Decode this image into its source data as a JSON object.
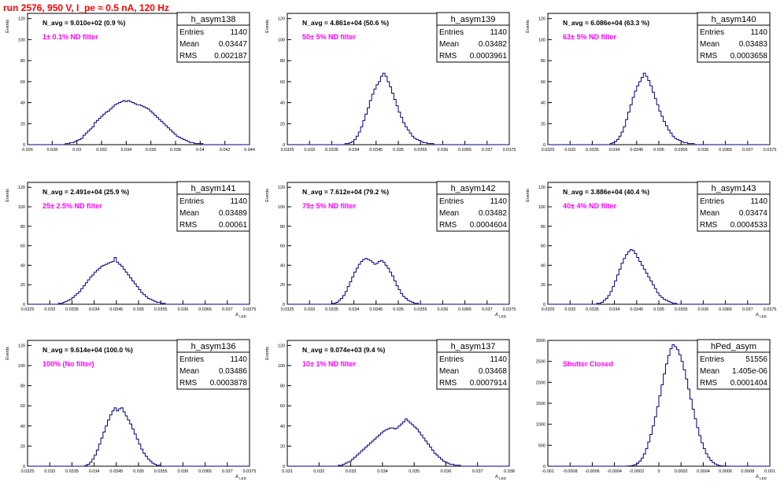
{
  "header": {
    "run_title": "run 2576,   950 V, I_pe ≈ 0.5 nA, 120 Hz"
  },
  "colors": {
    "hist": "#000080",
    "navg": "#000000",
    "filter": "#ff00ff",
    "title": "#ff0000"
  },
  "chart_data": [
    {
      "type": "bar",
      "name": "h_asym138",
      "navg": "N_avg = 9.010e+02 (0.9 %)",
      "filter": "1± 0.1% ND filter",
      "ylabel": "Events",
      "xlabel": "",
      "stats": {
        "Entries": "1140",
        "Mean": "0.03447",
        "RMS": "0.002187"
      },
      "xlim": [
        0.026,
        0.044
      ],
      "ylim": [
        0,
        125
      ],
      "xticks": [
        "0.026",
        "0.028",
        "0.03",
        "0.032",
        "0.034",
        "0.036",
        "0.038",
        "0.04",
        "0.042",
        "0.044"
      ],
      "yticks": [
        "0",
        "20",
        "40",
        "60",
        "80",
        "100",
        "120"
      ],
      "values": [
        0,
        0,
        0,
        0,
        0,
        0,
        0,
        0,
        0,
        0,
        0,
        0,
        0,
        0,
        0,
        0,
        0,
        1,
        1,
        2,
        2,
        3,
        4,
        5,
        6,
        9,
        11,
        13,
        15,
        17,
        21,
        23,
        25,
        27,
        29,
        31,
        32,
        34,
        36,
        38,
        39,
        40,
        41,
        42,
        41,
        42,
        41,
        40,
        39,
        38,
        38,
        37,
        36,
        35,
        34,
        32,
        30,
        28,
        26,
        24,
        22,
        20,
        18,
        16,
        14,
        12,
        10,
        8,
        7,
        6,
        5,
        4,
        3,
        2,
        2,
        1,
        1,
        1,
        1,
        0,
        0,
        0,
        0,
        0,
        0,
        0,
        0,
        0,
        0,
        0,
        0,
        0,
        0,
        0,
        0,
        0,
        0,
        0,
        0,
        0
      ]
    },
    {
      "type": "bar",
      "name": "h_asym139",
      "navg": "N_avg = 4.861e+04 (50.6 %)",
      "filter": "50± 5% ND filter",
      "ylabel": "Events",
      "xlabel": "",
      "stats": {
        "Entries": "1140",
        "Mean": "0.03482",
        "RMS": "0.0003961"
      },
      "xlim": [
        0.0325,
        0.0375
      ],
      "ylim": [
        0,
        125
      ],
      "xticks": [
        "0.0325",
        "0.033",
        "0.0335",
        "0.034",
        "0.0345",
        "0.035",
        "0.0355",
        "0.036",
        "0.0365",
        "0.037",
        "0.0375"
      ],
      "yticks": [
        "0",
        "20",
        "40",
        "60",
        "80",
        "100",
        "120"
      ],
      "values": [
        0,
        0,
        0,
        0,
        0,
        0,
        0,
        0,
        0,
        0,
        0,
        0,
        0,
        0,
        0,
        0,
        0,
        0,
        0,
        0,
        0,
        0,
        0,
        0,
        0,
        0,
        1,
        1,
        2,
        3,
        5,
        8,
        12,
        17,
        23,
        29,
        35,
        42,
        48,
        53,
        57,
        60,
        65,
        68,
        65,
        60,
        55,
        49,
        43,
        37,
        31,
        26,
        21,
        17,
        14,
        11,
        8,
        6,
        5,
        4,
        3,
        2,
        2,
        1,
        1,
        1,
        0,
        0,
        0,
        0,
        0,
        0,
        0,
        0,
        0,
        0,
        0,
        0,
        0,
        0,
        0,
        0,
        0,
        0,
        0,
        0,
        0,
        0,
        0,
        0,
        0,
        0,
        0,
        0,
        0,
        0,
        0,
        0,
        0,
        0
      ]
    },
    {
      "type": "bar",
      "name": "h_asym140",
      "navg": "N_avg = 6.086e+04 (63.3 %)",
      "filter": "63± 5% ND filter",
      "ylabel": "Events",
      "xlabel": "",
      "stats": {
        "Entries": "1140",
        "Mean": "0.03483",
        "RMS": "0.0003658"
      },
      "xlim": [
        0.0325,
        0.0375
      ],
      "ylim": [
        0,
        125
      ],
      "xticks": [
        "0.0325",
        "0.033",
        "0.0335",
        "0.034",
        "0.0345",
        "0.035",
        "0.0355",
        "0.036",
        "0.0365",
        "0.037",
        "0.0375"
      ],
      "yticks": [
        "0",
        "20",
        "40",
        "60",
        "80",
        "100",
        "120"
      ],
      "values": [
        0,
        0,
        0,
        0,
        0,
        0,
        0,
        0,
        0,
        0,
        0,
        0,
        0,
        0,
        0,
        0,
        0,
        0,
        0,
        0,
        0,
        0,
        0,
        0,
        0,
        0,
        0,
        0,
        1,
        2,
        3,
        5,
        8,
        12,
        17,
        24,
        31,
        38,
        45,
        51,
        56,
        60,
        64,
        68,
        65,
        61,
        56,
        50,
        44,
        38,
        32,
        27,
        22,
        18,
        14,
        11,
        8,
        6,
        5,
        4,
        3,
        2,
        2,
        1,
        1,
        1,
        0,
        0,
        0,
        0,
        0,
        0,
        0,
        0,
        0,
        0,
        0,
        0,
        0,
        0,
        0,
        0,
        0,
        0,
        0,
        0,
        0,
        0,
        0,
        0,
        0,
        0,
        0,
        0,
        0,
        0,
        0,
        0,
        0,
        0
      ]
    },
    {
      "type": "bar",
      "name": "h_asym141",
      "navg": "N_avg = 2.491e+04 (25.9 %)",
      "filter": "25± 2.5% ND filter",
      "ylabel": "Events",
      "xlabel": "A_LED",
      "stats": {
        "Entries": "1140",
        "Mean": "0.03489",
        "RMS": "0.00061"
      },
      "xlim": [
        0.0325,
        0.0375
      ],
      "ylim": [
        0,
        125
      ],
      "xticks": [
        "0.0325",
        "0.033",
        "0.0335",
        "0.034",
        "0.0345",
        "0.035",
        "0.0355",
        "0.036",
        "0.0365",
        "0.037",
        "0.0375"
      ],
      "yticks": [
        "0",
        "20",
        "40",
        "60",
        "80",
        "100",
        "120"
      ],
      "values": [
        0,
        0,
        0,
        0,
        0,
        0,
        0,
        0,
        0,
        0,
        0,
        0,
        0,
        0,
        1,
        1,
        2,
        3,
        4,
        5,
        7,
        9,
        11,
        13,
        16,
        19,
        22,
        25,
        28,
        30,
        33,
        35,
        37,
        39,
        40,
        41,
        42,
        43,
        44,
        48,
        43,
        41,
        39,
        36,
        33,
        30,
        27,
        24,
        21,
        18,
        15,
        12,
        10,
        8,
        6,
        5,
        4,
        3,
        2,
        2,
        1,
        1,
        0,
        0,
        0,
        0,
        0,
        0,
        0,
        0,
        0,
        0,
        0,
        0,
        0,
        0,
        0,
        0,
        0,
        0,
        0,
        0,
        0,
        0,
        0,
        0,
        0,
        0,
        0,
        0,
        0,
        0,
        0,
        0,
        0,
        0,
        0,
        0,
        0,
        0
      ]
    },
    {
      "type": "bar",
      "name": "h_asym142",
      "navg": "N_avg = 7.612e+04 (79.2 %)",
      "filter": "79± 5% ND filter",
      "ylabel": "Events",
      "xlabel": "A_LED",
      "stats": {
        "Entries": "1140",
        "Mean": "0.03482",
        "RMS": "0.0004604"
      },
      "xlim": [
        0.0325,
        0.0375
      ],
      "ylim": [
        0,
        125
      ],
      "xticks": [
        "0.0325",
        "0.033",
        "0.0335",
        "0.034",
        "0.0345",
        "0.035",
        "0.0355",
        "0.036",
        "0.0365",
        "0.037",
        "0.0375"
      ],
      "yticks": [
        "0",
        "20",
        "40",
        "60",
        "80",
        "100",
        "120"
      ],
      "values": [
        0,
        0,
        0,
        0,
        0,
        0,
        0,
        0,
        0,
        0,
        0,
        0,
        0,
        0,
        0,
        0,
        0,
        0,
        0,
        0,
        1,
        1,
        2,
        4,
        6,
        9,
        13,
        18,
        23,
        28,
        33,
        37,
        41,
        44,
        46,
        47,
        46,
        45,
        43,
        41,
        42,
        44,
        45,
        43,
        40,
        37,
        33,
        29,
        24,
        19,
        15,
        11,
        8,
        6,
        4,
        3,
        2,
        1,
        1,
        0,
        0,
        0,
        0,
        0,
        0,
        0,
        0,
        0,
        0,
        0,
        0,
        0,
        0,
        0,
        0,
        0,
        0,
        0,
        0,
        0,
        0,
        0,
        0,
        0,
        0,
        0,
        0,
        0,
        0,
        0,
        0,
        0,
        0,
        0,
        0,
        0,
        0,
        0,
        0,
        0
      ]
    },
    {
      "type": "bar",
      "name": "h_asym143",
      "navg": "N_avg = 3.886e+04 (40.4 %)",
      "filter": "40± 4% ND filter",
      "ylabel": "Events",
      "xlabel": "A_LED",
      "stats": {
        "Entries": "1140",
        "Mean": "0.03474",
        "RMS": "0.0004533"
      },
      "xlim": [
        0.0325,
        0.0375
      ],
      "ylim": [
        0,
        125
      ],
      "xticks": [
        "0.0325",
        "0.033",
        "0.0335",
        "0.034",
        "0.0345",
        "0.035",
        "0.0355",
        "0.036",
        "0.0365",
        "0.037",
        "0.0375"
      ],
      "yticks": [
        "0",
        "20",
        "40",
        "60",
        "80",
        "100",
        "120"
      ],
      "values": [
        0,
        0,
        0,
        0,
        0,
        0,
        0,
        0,
        0,
        0,
        0,
        0,
        0,
        0,
        0,
        0,
        0,
        0,
        0,
        0,
        0,
        0,
        1,
        1,
        2,
        4,
        6,
        9,
        13,
        18,
        24,
        30,
        36,
        42,
        47,
        51,
        54,
        56,
        55,
        52,
        48,
        44,
        40,
        36,
        32,
        28,
        24,
        20,
        16,
        12,
        9,
        7,
        5,
        4,
        3,
        2,
        1,
        1,
        0,
        0,
        0,
        0,
        0,
        0,
        0,
        0,
        0,
        0,
        0,
        0,
        0,
        0,
        0,
        0,
        0,
        0,
        0,
        0,
        0,
        0,
        0,
        0,
        0,
        0,
        0,
        0,
        0,
        0,
        0,
        0,
        0,
        0,
        0,
        0,
        0,
        0,
        0,
        0,
        0,
        0
      ]
    },
    {
      "type": "bar",
      "name": "h_asym136",
      "navg": "N_avg = 9.614e+04 (100.0 %)",
      "filter": "100% (No filter)",
      "ylabel": "Events",
      "xlabel": "A_LED",
      "stats": {
        "Entries": "1140",
        "Mean": "0.03486",
        "RMS": "0.0003878"
      },
      "xlim": [
        0.0325,
        0.0375
      ],
      "ylim": [
        0,
        125
      ],
      "xticks": [
        "0.0325",
        "0.033",
        "0.0335",
        "0.034",
        "0.0345",
        "0.035",
        "0.0355",
        "0.036",
        "0.0365",
        "0.037",
        "0.0375"
      ],
      "yticks": [
        "0",
        "20",
        "40",
        "60",
        "80",
        "100",
        "120"
      ],
      "values": [
        0,
        0,
        0,
        0,
        0,
        0,
        0,
        0,
        0,
        0,
        0,
        0,
        0,
        0,
        0,
        0,
        0,
        0,
        0,
        0,
        0,
        0,
        0,
        0,
        0,
        0,
        1,
        2,
        4,
        7,
        11,
        16,
        22,
        28,
        34,
        40,
        46,
        51,
        55,
        58,
        55,
        57,
        58,
        54,
        50,
        46,
        42,
        37,
        32,
        27,
        22,
        17,
        13,
        10,
        7,
        5,
        3,
        2,
        1,
        1,
        0,
        0,
        0,
        0,
        0,
        0,
        0,
        0,
        0,
        0,
        0,
        0,
        0,
        0,
        0,
        0,
        0,
        0,
        0,
        0,
        0,
        0,
        0,
        0,
        0,
        0,
        0,
        0,
        0,
        0,
        0,
        0,
        0,
        0,
        0,
        0,
        0,
        0,
        0,
        0
      ]
    },
    {
      "type": "bar",
      "name": "h_asym137",
      "navg": "N_avg = 9.074e+03 (9.4 %)",
      "filter": "10± 1% ND filter",
      "ylabel": "Events",
      "xlabel": "A_LED",
      "stats": {
        "Entries": "1140",
        "Mean": "0.03468",
        "RMS": "0.0007914"
      },
      "xlim": [
        0.031,
        0.038
      ],
      "ylim": [
        0,
        125
      ],
      "xticks": [
        "0.031",
        "0.032",
        "0.033",
        "0.034",
        "0.035",
        "0.036",
        "0.037",
        "0.038"
      ],
      "yticks": [
        "0",
        "20",
        "40",
        "60",
        "80",
        "100",
        "120"
      ],
      "values": [
        0,
        0,
        0,
        0,
        0,
        0,
        0,
        0,
        0,
        0,
        0,
        0,
        0,
        0,
        0,
        0,
        0,
        0,
        0,
        0,
        0,
        0,
        0,
        1,
        1,
        2,
        3,
        4,
        5,
        7,
        9,
        11,
        13,
        15,
        17,
        19,
        21,
        23,
        25,
        27,
        29,
        31,
        33,
        35,
        36,
        37,
        38,
        38,
        37,
        38,
        40,
        42,
        44,
        47,
        45,
        43,
        41,
        39,
        37,
        34,
        31,
        28,
        25,
        22,
        19,
        16,
        13,
        11,
        9,
        7,
        5,
        4,
        3,
        2,
        2,
        1,
        1,
        1,
        0,
        0,
        0,
        0,
        0,
        0,
        0,
        0,
        0,
        0,
        0,
        0,
        0,
        0,
        0,
        0,
        0,
        0,
        0,
        0,
        0,
        0
      ]
    },
    {
      "type": "bar",
      "name": "hPed_asym",
      "navg": "",
      "filter": "Shutter Closed",
      "ylabel": "",
      "xlabel": "A_LED",
      "stats": {
        "Entries": "51556",
        "Mean": "1.405e-06",
        "RMS": "0.0001404"
      },
      "xlim": [
        -0.001,
        0.001
      ],
      "ylim": [
        0,
        3000
      ],
      "xticks": [
        "-0.001",
        "-0.0008",
        "-0.0006",
        "-0.0004",
        "-0.0002",
        "0",
        "0.0002",
        "0.0004",
        "0.0006",
        "0.0008",
        "0.001"
      ],
      "yticks": [
        "0",
        "500",
        "1000",
        "1500",
        "2000",
        "2500",
        "3000"
      ],
      "values": [
        0,
        0,
        0,
        0,
        0,
        0,
        0,
        0,
        0,
        0,
        0,
        0,
        0,
        0,
        0,
        0,
        0,
        0,
        0,
        0,
        0,
        0,
        0,
        0,
        0,
        0,
        0,
        0,
        0,
        0,
        0,
        0,
        0,
        0,
        0,
        2,
        5,
        10,
        20,
        40,
        70,
        120,
        190,
        290,
        420,
        580,
        760,
        960,
        1180,
        1420,
        1680,
        1940,
        2200,
        2440,
        2640,
        2800,
        2900,
        2850,
        2780,
        2660,
        2500,
        2300,
        2080,
        1840,
        1600,
        1360,
        1130,
        920,
        730,
        560,
        420,
        300,
        210,
        140,
        90,
        55,
        30,
        15,
        8,
        4,
        2,
        1,
        0,
        0,
        0,
        0,
        0,
        0,
        0,
        0,
        0,
        0,
        0,
        0,
        0,
        0,
        0,
        0,
        0,
        0
      ]
    }
  ]
}
